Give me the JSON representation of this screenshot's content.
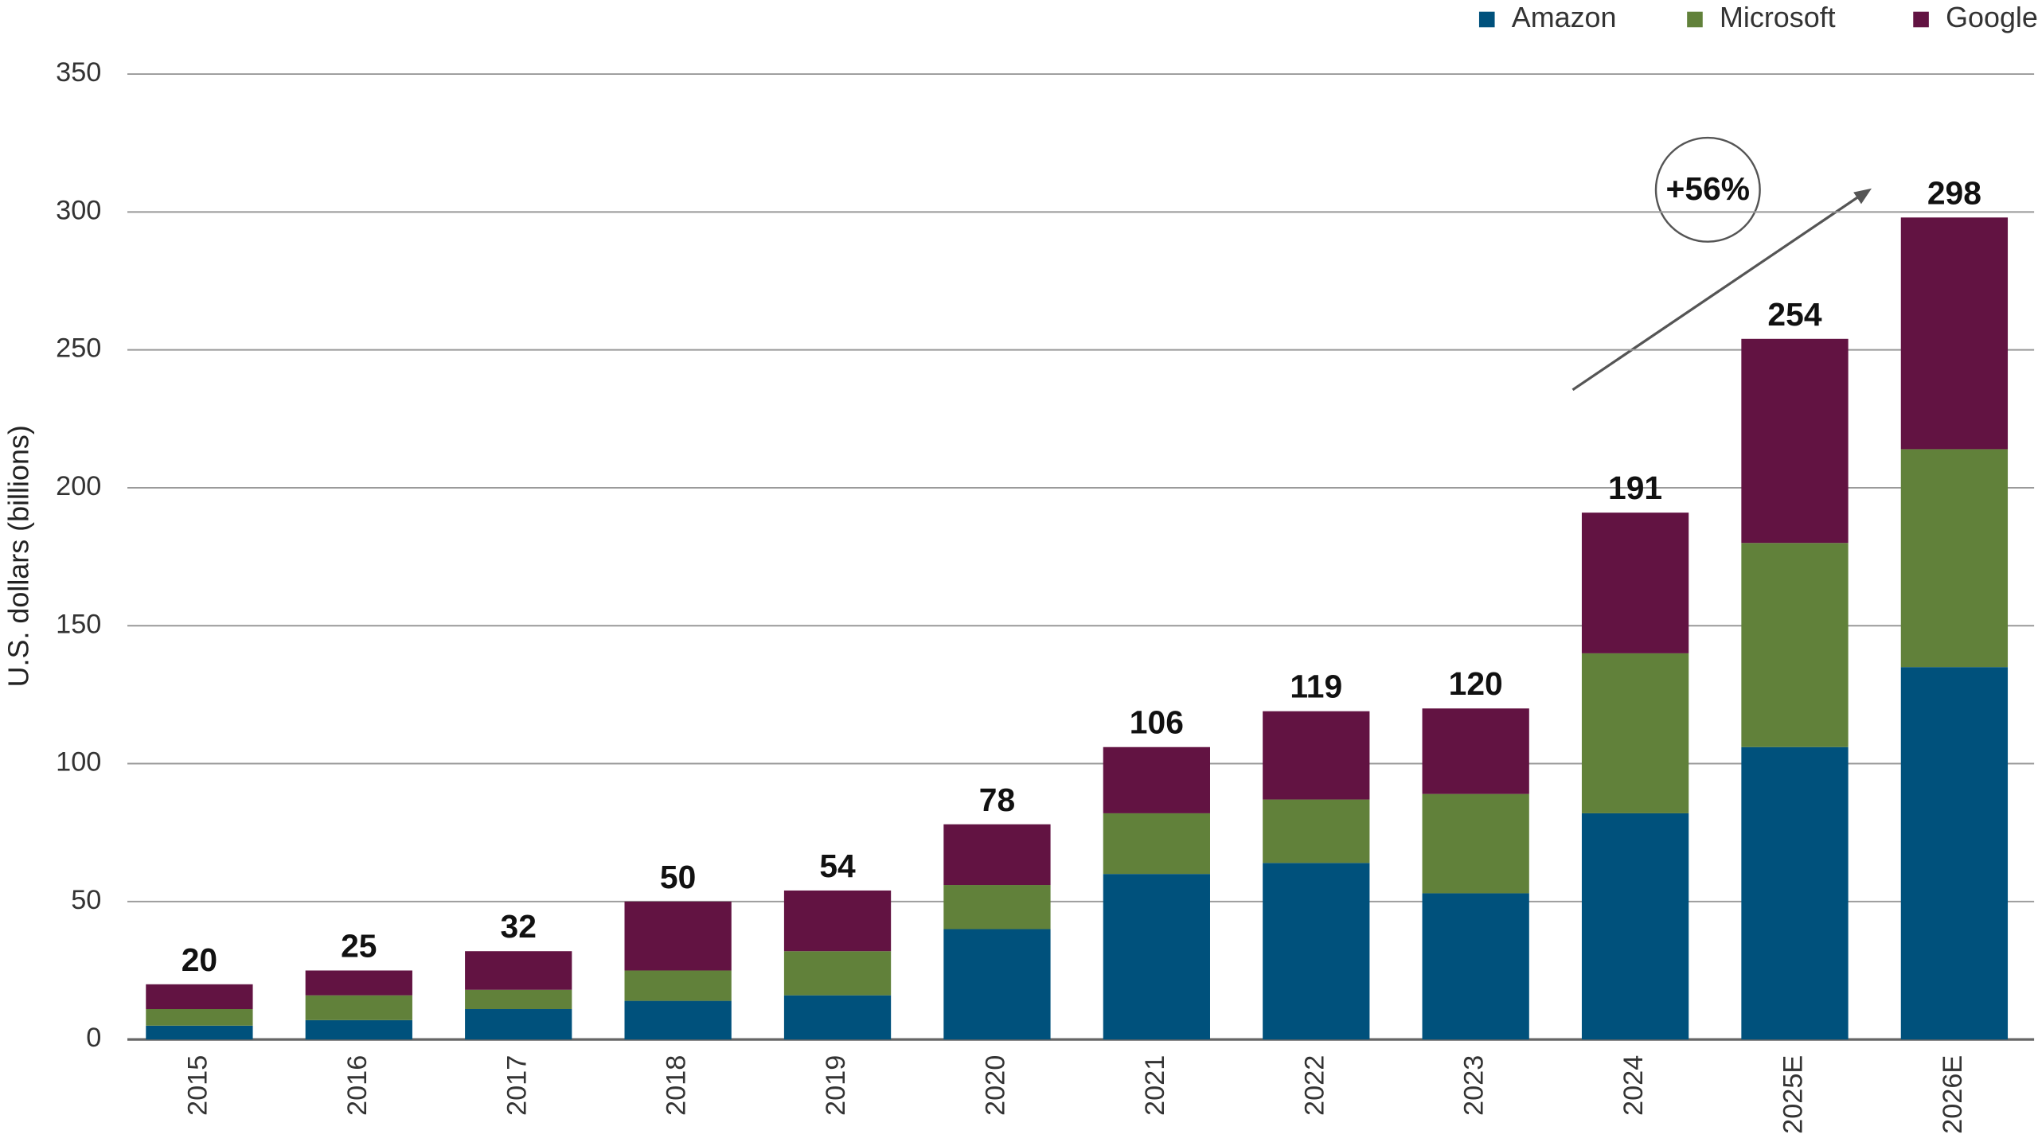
{
  "chart_data": {
    "type": "stacked-bar",
    "y_label": "U.S. dollars (billions)",
    "categories": [
      "2015",
      "2016",
      "2017",
      "2018",
      "2019",
      "2020",
      "2021",
      "2022",
      "2023",
      "2024",
      "2025E",
      "2026E"
    ],
    "series": [
      {
        "name": "Amazon",
        "color": "#00517c",
        "values": [
          5,
          7,
          11,
          14,
          16,
          40,
          60,
          64,
          53,
          82,
          106,
          135
        ]
      },
      {
        "name": "Microsoft",
        "color": "#61813a",
        "values": [
          6,
          9,
          7,
          11,
          16,
          16,
          22,
          23,
          36,
          58,
          74,
          79
        ]
      },
      {
        "name": "Google",
        "color": "#621342",
        "values": [
          9,
          9,
          14,
          25,
          22,
          22,
          24,
          32,
          31,
          51,
          74,
          84
        ]
      }
    ],
    "totals": [
      20,
      25,
      32,
      50,
      54,
      78,
      106,
      119,
      120,
      191,
      254,
      298
    ],
    "annotation": "+56%",
    "ylim": [
      0,
      350
    ],
    "yticks": [
      0,
      50,
      100,
      150,
      200,
      250,
      300,
      350
    ],
    "grid": true
  }
}
